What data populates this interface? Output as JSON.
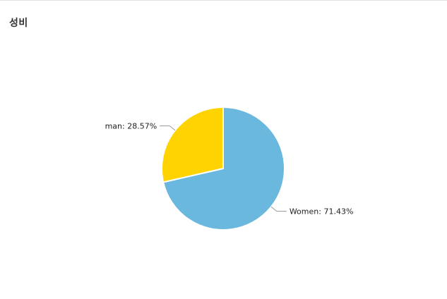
{
  "panel": {
    "title": "성비"
  },
  "chart_data": {
    "type": "pie",
    "title": "성비",
    "slices": [
      {
        "label": "Women",
        "value": 71.43,
        "display": "Women: 71.43%",
        "color": "#6AB8DE"
      },
      {
        "label": "man",
        "value": 28.57,
        "display": "man: 28.57%",
        "color": "#FFD300"
      }
    ],
    "start_angle_deg": 0,
    "direction": "clockwise",
    "legend": "none"
  }
}
